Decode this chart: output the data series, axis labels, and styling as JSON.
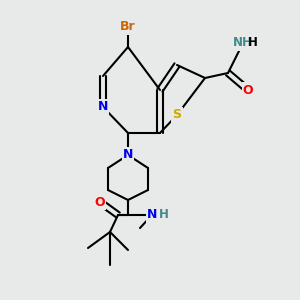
{
  "bg_color": "#e8eaea",
  "atom_colors": {
    "Br": "#cc6600",
    "N": "#0000ee",
    "S": "#ccaa00",
    "O": "#ff0000",
    "NH": "#448888",
    "C": "#000000"
  },
  "lw": 1.5,
  "fs": 8.5
}
